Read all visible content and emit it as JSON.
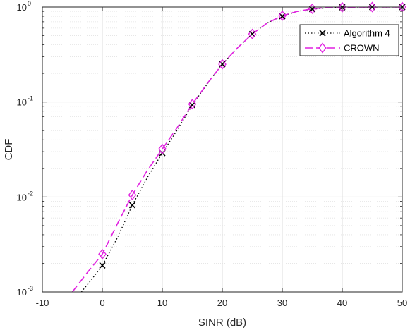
{
  "chart_data": {
    "type": "line",
    "xlabel": "SINR (dB)",
    "ylabel": "CDF",
    "xlim": [
      -10,
      50
    ],
    "ylim": [
      0.001,
      1
    ],
    "yscale": "log",
    "grid": true,
    "minor_grid": true,
    "legend_position": "top-right",
    "x_ticks": [
      "-10",
      "0",
      "10",
      "20",
      "30",
      "40",
      "50"
    ],
    "y_ticks": [
      {
        "base": "10",
        "exp": "-3"
      },
      {
        "base": "10",
        "exp": "-2"
      },
      {
        "base": "10",
        "exp": "-1"
      },
      {
        "base": "10",
        "exp": "0"
      }
    ],
    "series": [
      {
        "name": "Algorithm 4",
        "color": "#000000",
        "line_style": "dotted",
        "marker": "x",
        "curve_x": [
          -3.5,
          -2,
          0,
          2.5,
          5,
          7.5,
          10,
          12.5,
          15,
          17.5,
          20,
          22.5,
          25,
          27.5,
          30,
          32.5,
          35,
          37.5,
          40,
          45,
          50
        ],
        "curve_y": [
          0.001,
          0.0013,
          0.0019,
          0.0037,
          0.0082,
          0.016,
          0.029,
          0.051,
          0.093,
          0.155,
          0.25,
          0.37,
          0.52,
          0.68,
          0.8,
          0.9,
          0.95,
          0.98,
          0.995,
          1.0,
          1.0
        ],
        "marker_x": [
          0,
          5,
          10,
          15,
          20,
          25,
          30,
          35,
          40,
          45,
          50
        ],
        "marker_y": [
          0.0019,
          0.0082,
          0.029,
          0.093,
          0.25,
          0.52,
          0.8,
          0.95,
          0.995,
          1.0,
          1.0
        ]
      },
      {
        "name": "CROWN",
        "color": "#e020e0",
        "line_style": "dashed",
        "marker": "diamond",
        "curve_x": [
          -5,
          -2.5,
          0,
          2.5,
          5,
          7.5,
          10,
          12.5,
          15,
          17.5,
          20,
          22.5,
          25,
          27.5,
          30,
          32.5,
          35,
          37.5,
          40,
          45,
          50
        ],
        "curve_y": [
          0.001,
          0.0016,
          0.0025,
          0.0052,
          0.0105,
          0.019,
          0.032,
          0.054,
          0.095,
          0.157,
          0.25,
          0.37,
          0.52,
          0.68,
          0.81,
          0.9,
          0.96,
          0.985,
          0.995,
          1.0,
          1.0
        ],
        "marker_x": [
          0,
          5,
          10,
          15,
          20,
          25,
          30,
          35,
          40,
          45,
          50
        ],
        "marker_y": [
          0.0025,
          0.0105,
          0.032,
          0.095,
          0.25,
          0.52,
          0.81,
          0.96,
          0.995,
          1.0,
          1.0
        ]
      }
    ]
  }
}
